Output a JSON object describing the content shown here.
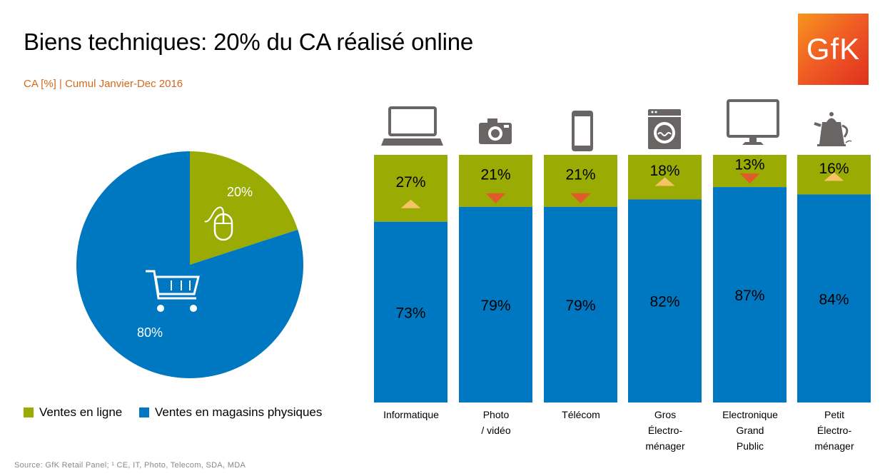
{
  "title": "Biens techniques: 20% du CA réalisé online",
  "subtitle": "CA [%] | Cumul Janvier-Dec 2016",
  "logo_text": "GfK",
  "source": "Source: GfK Retail Panel; ¹ CE, IT, Photo, Telecom, SDA, MDA",
  "colors": {
    "online": "#9aab04",
    "store": "#0078c1",
    "up": "#f5c363",
    "down": "#e05a2c",
    "icon": "#6a6565"
  },
  "chart_data": [
    {
      "type": "pie",
      "categories": [
        "Ventes en ligne",
        "Ventes en magasins physiques"
      ],
      "values": [
        20,
        80
      ],
      "labels": [
        "20%",
        "80%"
      ],
      "icons": [
        "mouse-icon",
        "shopping-cart-icon"
      ]
    },
    {
      "type": "bar",
      "stacked": true,
      "categories": [
        "Informatique",
        "Photo / vidéo",
        "Télécom",
        "Gros Électro-ménager",
        "Electronique Grand Public",
        "Petit Électro-ménager"
      ],
      "category_lines": [
        [
          "Informatique"
        ],
        [
          "Photo",
          "/ vidéo"
        ],
        [
          "Télécom"
        ],
        [
          "Gros",
          "Électro-",
          "ménager"
        ],
        [
          "Electronique",
          "Grand",
          "Public"
        ],
        [
          "Petit",
          "Électro-",
          "ménager"
        ]
      ],
      "icons": [
        "laptop-icon",
        "camera-icon",
        "smartphone-icon",
        "washing-machine-icon",
        "monitor-icon",
        "kettle-icon"
      ],
      "series": [
        {
          "name": "Ventes en ligne",
          "values": [
            27,
            21,
            21,
            18,
            13,
            16
          ],
          "labels": [
            "27%",
            "21%",
            "21%",
            "18%",
            "13%",
            "16%"
          ]
        },
        {
          "name": "Ventes en magasins physiques",
          "values": [
            73,
            79,
            79,
            82,
            87,
            84
          ],
          "labels": [
            "73%",
            "79%",
            "79%",
            "82%",
            "87%",
            "84%"
          ]
        }
      ],
      "trend": [
        "up",
        "down",
        "down",
        "up",
        "down",
        "up"
      ],
      "ylim": [
        0,
        100
      ]
    }
  ],
  "legend": [
    {
      "label": "Ventes en ligne",
      "color": "#9aab04"
    },
    {
      "label": "Ventes en magasins physiques",
      "color": "#0078c1"
    }
  ]
}
